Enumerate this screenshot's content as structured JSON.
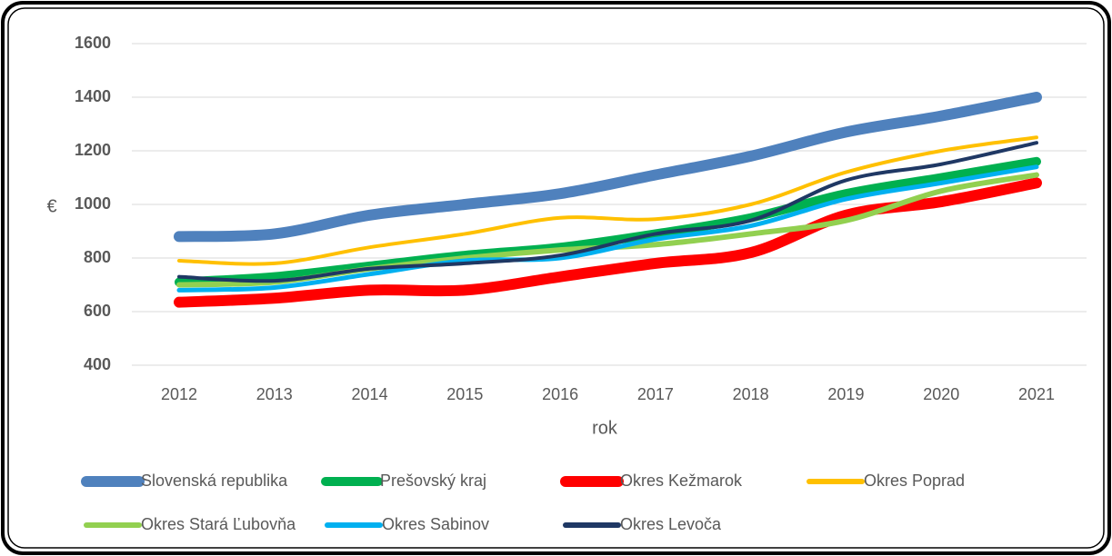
{
  "chart_data": {
    "type": "line",
    "x_label": "rok",
    "y_label": "€",
    "categories": [
      "2012",
      "2013",
      "2014",
      "2015",
      "2016",
      "2017",
      "2018",
      "2019",
      "2020",
      "2021"
    ],
    "ylim": [
      400,
      1600
    ],
    "yticks": [
      400,
      600,
      800,
      1000,
      1200,
      1400,
      1600
    ],
    "grid": true,
    "series": [
      {
        "name": "Slovenská republika",
        "color": "#4f81bd",
        "line_width": 12,
        "values": [
          880,
          890,
          960,
          1000,
          1040,
          1110,
          1180,
          1270,
          1330,
          1400
        ]
      },
      {
        "name": "Prešovský kraj",
        "color": "#00b050",
        "line_width": 10,
        "values": [
          710,
          730,
          770,
          810,
          840,
          890,
          950,
          1040,
          1100,
          1160
        ]
      },
      {
        "name": "Okres Kežmarok",
        "color": "#ff0000",
        "line_width": 12,
        "values": [
          635,
          650,
          680,
          680,
          730,
          780,
          820,
          960,
          1010,
          1080
        ]
      },
      {
        "name": "Okres Poprad",
        "color": "#ffc000",
        "line_width": 4,
        "values": [
          790,
          780,
          840,
          890,
          950,
          945,
          1000,
          1120,
          1200,
          1250
        ]
      },
      {
        "name": "Okres Stará Ľubovňa",
        "color": "#92d050",
        "line_width": 6,
        "values": [
          700,
          710,
          760,
          800,
          830,
          850,
          890,
          940,
          1050,
          1110
        ]
      },
      {
        "name": "Okres Sabinov",
        "color": "#00b0f0",
        "line_width": 5,
        "values": [
          680,
          690,
          740,
          790,
          800,
          870,
          920,
          1020,
          1080,
          1140
        ]
      },
      {
        "name": "Okres Levoča",
        "color": "#1f3864",
        "line_width": 4,
        "values": [
          730,
          715,
          760,
          780,
          810,
          890,
          940,
          1090,
          1150,
          1230
        ]
      }
    ]
  }
}
